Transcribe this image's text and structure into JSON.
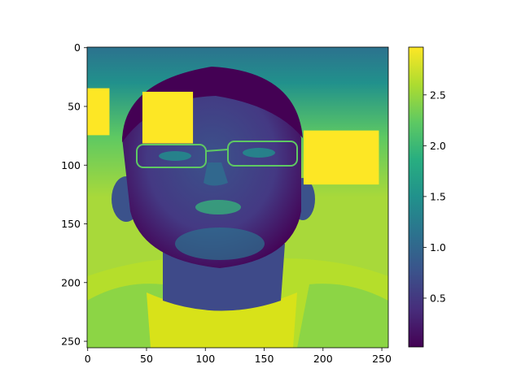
{
  "colors": {
    "viridis_low": "#440154",
    "viridis_high": "#fde725",
    "background_high": "#a8d93a",
    "occlusion_patch": "#fde725"
  },
  "chart_data": {
    "type": "heatmap",
    "title": "",
    "xlabel": "",
    "ylabel": "",
    "image_description": "viridis-colormapped grayscale portrait with rectangular high-value occlusion patches",
    "xlim": [
      0,
      255
    ],
    "ylim": [
      255,
      0
    ],
    "x_ticks": [
      0,
      50,
      100,
      150,
      200,
      250
    ],
    "y_ticks": [
      0,
      50,
      100,
      150,
      200,
      250
    ],
    "colorbar": {
      "colormap": "viridis",
      "range": [
        0.02,
        2.97
      ],
      "ticks": [
        0.5,
        1.0,
        1.5,
        2.0,
        2.5
      ],
      "tick_labels": [
        "0.5",
        "1.0",
        "1.5",
        "2.0",
        "2.5"
      ]
    },
    "occlusion_patches": [
      {
        "x0": 0,
        "x1": 19,
        "y0": 35,
        "y1": 75,
        "value": 2.97
      },
      {
        "x0": 47,
        "x1": 90,
        "y0": 38,
        "y1": 82,
        "value": 2.97
      },
      {
        "x0": 184,
        "x1": 248,
        "y0": 71,
        "y1": 117,
        "value": 2.97
      }
    ],
    "grid": false,
    "legend": "colorbar-right"
  }
}
